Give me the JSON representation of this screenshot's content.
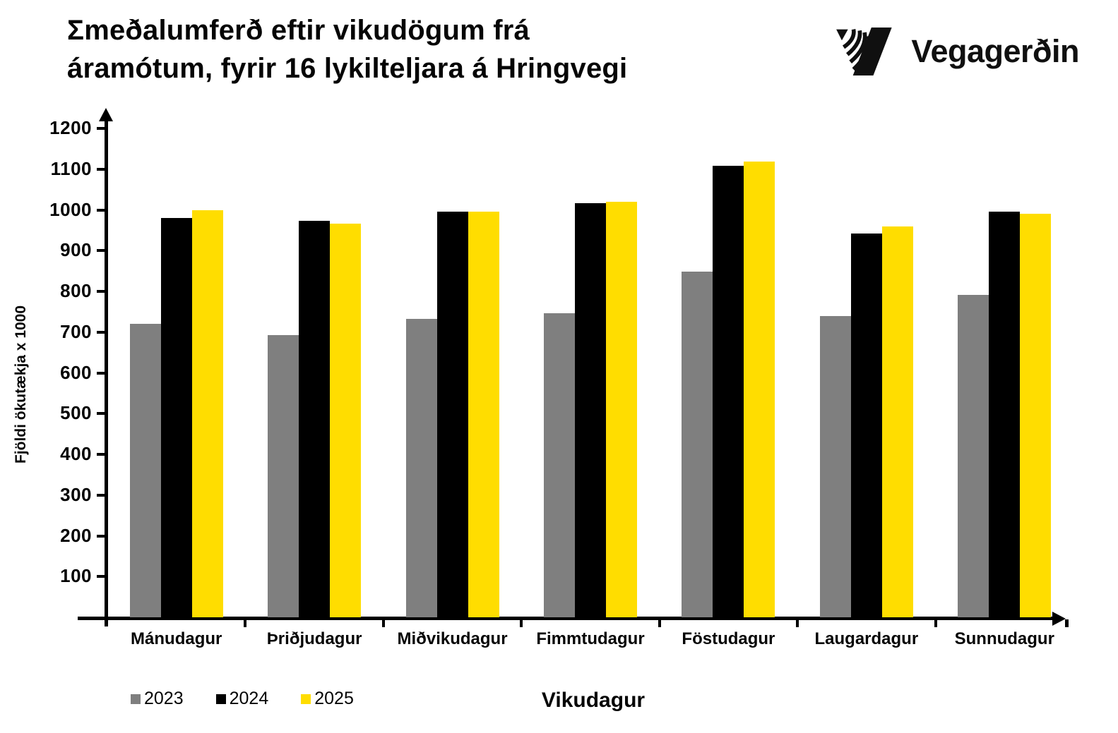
{
  "header": {
    "title_lines": [
      "Σmeðalumferð eftir vikudögum frá",
      "áramótum, fyrir 16 lykilteljara á Hringvegi"
    ],
    "logo_text": "Vegagerðin"
  },
  "chart_data": {
    "type": "bar",
    "title": "Σmeðalumferð eftir vikudögum frá áramótum, fyrir 16 lykilteljara á Hringvegi",
    "xlabel": "Vikudagur",
    "ylabel": "Fjöldi ökutækja x 1000",
    "ylim": [
      0,
      1200
    ],
    "ytick_step": 100,
    "grid": false,
    "legend_position": "bottom-left",
    "categories": [
      "Mánudagur",
      "Þriðjudagur",
      "Miðvikudagur",
      "Fimmtudagur",
      "Föstudagur",
      "Laugardagur",
      "Sunnudagur"
    ],
    "series": [
      {
        "name": "2023",
        "color": "#7f7f7f",
        "values": [
          720,
          692,
          733,
          747,
          848,
          740,
          791
        ]
      },
      {
        "name": "2024",
        "color": "#000000",
        "values": [
          980,
          973,
          995,
          1017,
          1108,
          942,
          995
        ]
      },
      {
        "name": "2025",
        "color": "#ffdd00",
        "values": [
          1000,
          967,
          996,
          1020,
          1118,
          960,
          990
        ]
      }
    ]
  },
  "colors": {
    "bar_2023": "#7f7f7f",
    "bar_2024": "#000000",
    "bar_2025": "#ffdd00",
    "axis": "#000000",
    "background": "#ffffff"
  }
}
